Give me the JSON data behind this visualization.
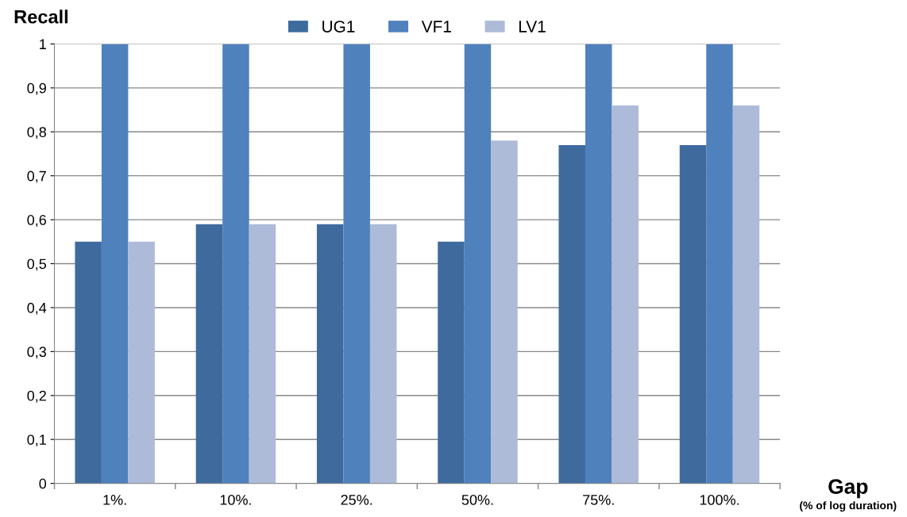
{
  "chart_data": {
    "type": "bar",
    "ylabel": "Recall",
    "xlabel": "Gap",
    "annotations": [
      "(% of log duration)"
    ],
    "categories": [
      "1%.",
      "10%.",
      "25%.",
      "50%.",
      "75%.",
      "100%."
    ],
    "series": [
      {
        "name": "UG1",
        "color": "#3f6a9e",
        "values": [
          0.55,
          0.59,
          0.59,
          0.55,
          0.77,
          0.77
        ]
      },
      {
        "name": "VF1",
        "color": "#4f81bd",
        "values": [
          1,
          1,
          1,
          1,
          1,
          1
        ]
      },
      {
        "name": "LV1",
        "color": "#adbbd8",
        "values": [
          0.55,
          0.59,
          0.59,
          0.78,
          0.86,
          0.86
        ]
      }
    ],
    "ylim": [
      0,
      1
    ],
    "yticks": [
      0,
      {
        "value": 0.1,
        "label": "0,1"
      },
      {
        "value": 0.2,
        "label": "0,2"
      },
      {
        "value": 0.3,
        "label": "0,3"
      },
      {
        "value": 0.4,
        "label": "0,4"
      },
      {
        "value": 0.5,
        "label": "0,5"
      },
      {
        "value": 0.6,
        "label": "0,6"
      },
      {
        "value": 0.7,
        "label": "0,7"
      },
      {
        "value": 0.8,
        "label": "0,8"
      },
      {
        "value": 0.9,
        "label": "0,9"
      },
      1
    ],
    "grid": "y",
    "legend": "top"
  }
}
